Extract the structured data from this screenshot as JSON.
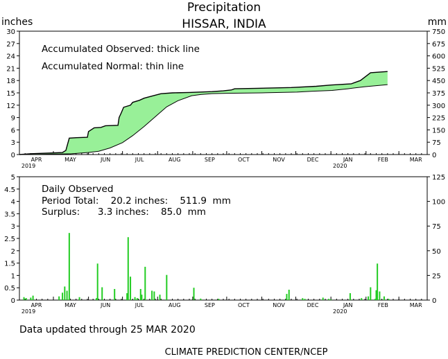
{
  "title": "Precipitation",
  "subtitle": "HISSAR,  INDIA",
  "footer_updated": "Data updated through 25 MAR 2020",
  "footer_credit": "CLIMATE PREDICTION CENTER/NCEP",
  "colors": {
    "fill": "#98f098",
    "bars": "#22cc22",
    "line": "#000000"
  },
  "chart_data": [
    {
      "type": "area",
      "ylabel_left": "inches",
      "ylabel_right": "mm",
      "ylim_left": [
        0,
        30
      ],
      "ylim_right": [
        0,
        750
      ],
      "yticks_left": [
        "0",
        "3",
        "6",
        "9",
        "12",
        "15",
        "18",
        "21",
        "24",
        "27",
        "30"
      ],
      "yticks_right": [
        "0",
        "75",
        "150",
        "225",
        "300",
        "375",
        "450",
        "525",
        "600",
        "675",
        "750"
      ],
      "legend": [
        "Accumulated Observed: thick line",
        "Accumulated Normal: thin line"
      ],
      "x_months": [
        "APR",
        "MAY",
        "JUN",
        "JUL",
        "AUG",
        "SEP",
        "OCT",
        "NOV",
        "DEC",
        "JAN",
        "FEB",
        "MAR"
      ],
      "x_year_labels": [
        {
          "month": "APR",
          "year": "2019"
        },
        {
          "month": "JAN",
          "year": "2020"
        }
      ],
      "series": [
        {
          "name": "Accumulated Observed",
          "points": [
            [
              0,
              0
            ],
            [
              10,
              0.2
            ],
            [
              20,
              0.3
            ],
            [
              30,
              0.4
            ],
            [
              38,
              0.5
            ],
            [
              41,
              1.0
            ],
            [
              44,
              4.0
            ],
            [
              50,
              4.1
            ],
            [
              60,
              4.2
            ],
            [
              61,
              5.6
            ],
            [
              66,
              6.5
            ],
            [
              72,
              6.6
            ],
            [
              76,
              7.0
            ],
            [
              87,
              7.1
            ],
            [
              88,
              9.0
            ],
            [
              90,
              10.2
            ],
            [
              92,
              11.5
            ],
            [
              98,
              12.0
            ],
            [
              100,
              12.7
            ],
            [
              106,
              13.2
            ],
            [
              110,
              13.7
            ],
            [
              118,
              14.3
            ],
            [
              125,
              14.8
            ],
            [
              135,
              15.0
            ],
            [
              150,
              15.1
            ],
            [
              170,
              15.3
            ],
            [
              180,
              15.5
            ],
            [
              187,
              15.7
            ],
            [
              190,
              16.0
            ],
            [
              210,
              16.1
            ],
            [
              240,
              16.3
            ],
            [
              262,
              16.6
            ],
            [
              275,
              16.9
            ],
            [
              293,
              17.2
            ],
            [
              301,
              18.0
            ],
            [
              310,
              19.9
            ],
            [
              325,
              20.2
            ]
          ]
        },
        {
          "name": "Accumulated Normal",
          "points": [
            [
              0,
              0
            ],
            [
              15,
              0.05
            ],
            [
              30,
              0.1
            ],
            [
              46,
              0.2
            ],
            [
              61,
              0.5
            ],
            [
              70,
              0.8
            ],
            [
              80,
              1.6
            ],
            [
              91,
              2.9
            ],
            [
              100,
              4.6
            ],
            [
              110,
              6.8
            ],
            [
              122,
              9.7
            ],
            [
              130,
              11.6
            ],
            [
              140,
              13.1
            ],
            [
              152,
              14.3
            ],
            [
              160,
              14.6
            ],
            [
              170,
              14.8
            ],
            [
              183,
              14.9
            ],
            [
              214,
              15.0
            ],
            [
              245,
              15.2
            ],
            [
              259,
              15.4
            ],
            [
              276,
              15.6
            ],
            [
              290,
              16.0
            ],
            [
              305,
              16.5
            ],
            [
              325,
              17.0
            ]
          ]
        }
      ]
    },
    {
      "type": "bar",
      "title": "Daily Observed",
      "period_total": "Period Total:    20.2 inches:    511.9  mm",
      "surplus": "Surplus:      3.3 inches:    85.0  mm",
      "ylim_left": [
        0,
        5
      ],
      "ylim_right": [
        0,
        125
      ],
      "yticks_left": [
        "0",
        "0.5",
        "1",
        "1.5",
        "2",
        "2.5",
        "3",
        "3.5",
        "4",
        "4.5",
        "5"
      ],
      "yticks_right": [
        "0",
        "25",
        "50",
        "75",
        "100",
        "125"
      ],
      "x_months": [
        "APR",
        "MAY",
        "JUN",
        "JUL",
        "AUG",
        "SEP",
        "OCT",
        "NOV",
        "DEC",
        "JAN",
        "FEB",
        "MAR"
      ],
      "x_year_labels": [
        {
          "month": "APR",
          "year": "2019"
        },
        {
          "month": "JAN",
          "year": "2020"
        }
      ],
      "x_day": [
        4,
        6,
        10,
        12,
        35,
        38,
        40,
        42,
        44,
        53,
        68,
        69,
        73,
        84,
        95,
        96,
        98,
        102,
        104,
        107,
        108,
        111,
        117,
        119,
        124,
        130,
        154,
        160,
        176,
        236,
        238,
        250,
        252,
        268,
        273,
        275,
        292,
        302,
        308,
        310,
        314,
        315,
        316,
        318,
        322,
        326
      ],
      "values": [
        0.12,
        0.08,
        0.1,
        0.18,
        0.15,
        0.3,
        0.55,
        0.38,
        2.72,
        0.12,
        0.08,
        1.48,
        0.52,
        0.45,
        0.28,
        2.55,
        0.95,
        0.12,
        0.08,
        0.45,
        0.22,
        1.35,
        0.38,
        0.35,
        0.22,
        1.02,
        0.5,
        0.06,
        0.05,
        0.25,
        0.42,
        0.08,
        0.05,
        0.1,
        0.05,
        0.03,
        0.28,
        0.08,
        0.15,
        0.52,
        0.05,
        0.4,
        1.48,
        0.35,
        0.15,
        0.05
      ]
    }
  ]
}
